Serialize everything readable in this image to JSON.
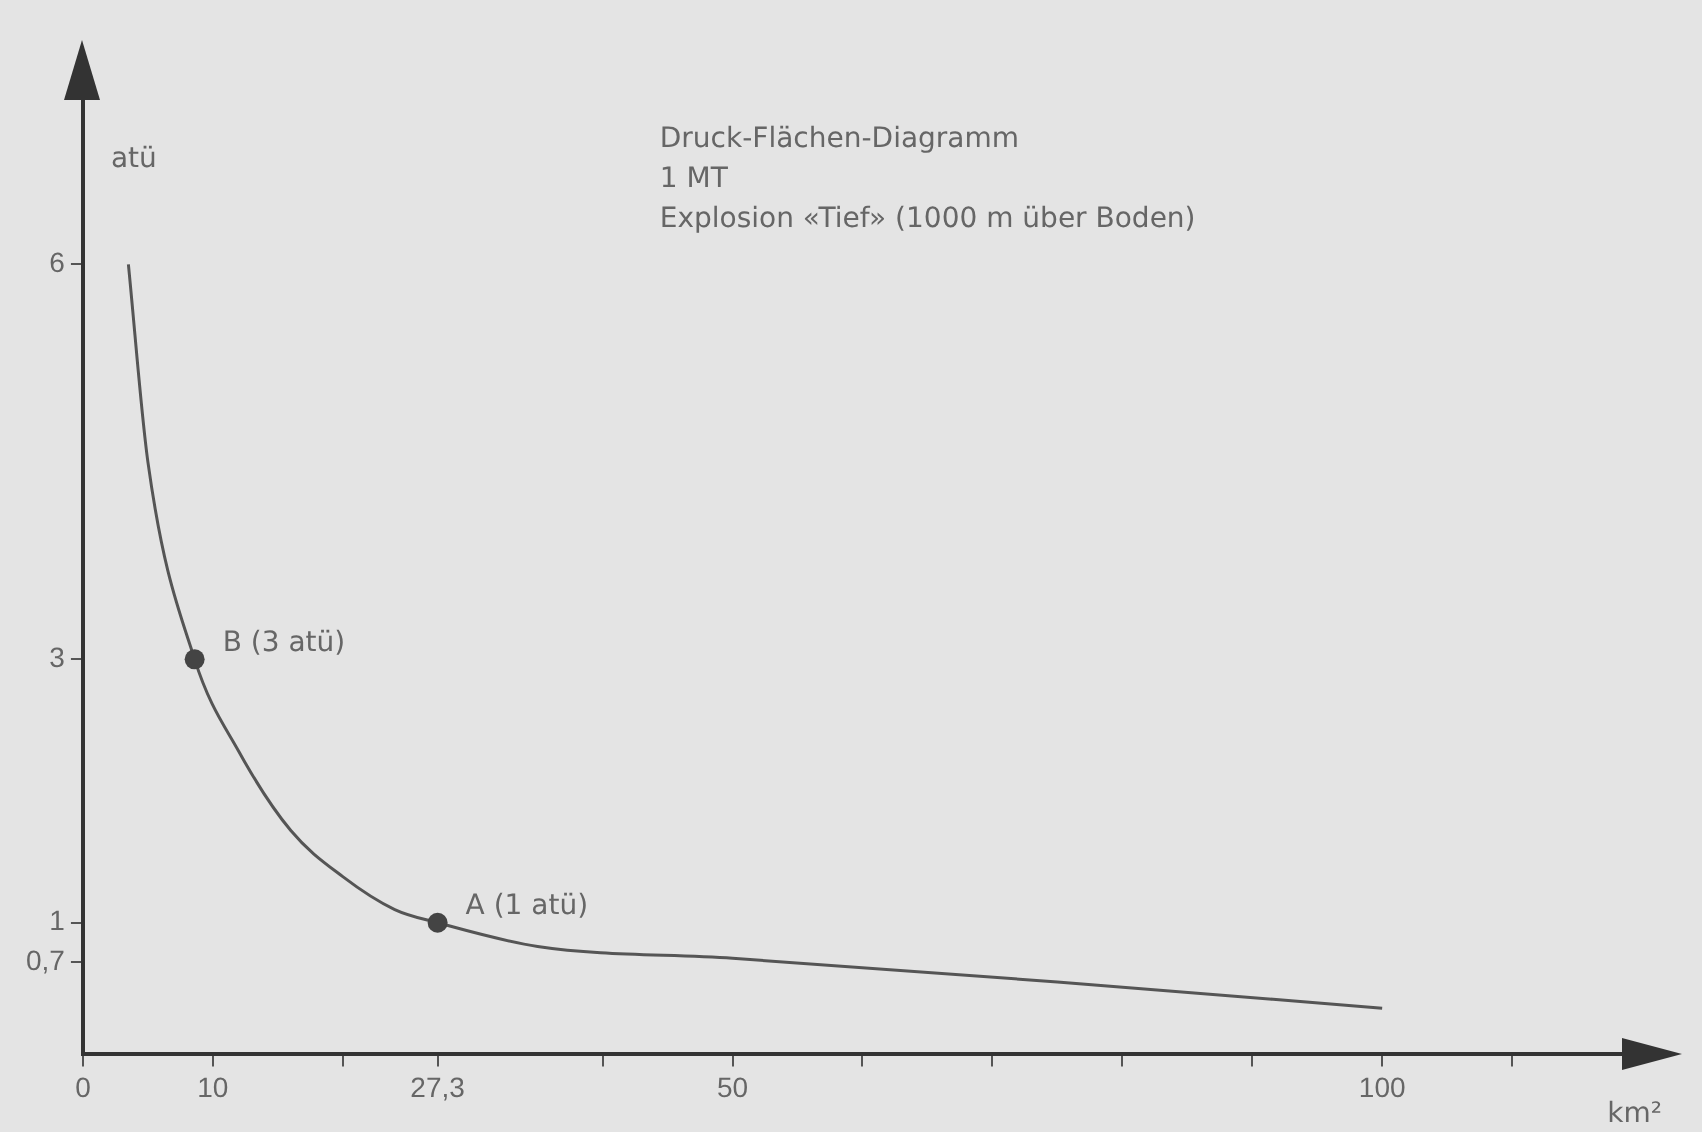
{
  "chart_data": {
    "type": "line",
    "title": "Druck-Flächen-Diagramm",
    "subtitle": "1 MT",
    "xlabel": "km²",
    "ylabel": "atü",
    "annotations": [
      "Explosion «Tief» (1000 m über Boden)",
      {
        "text": "B (3 atü)",
        "x": 8.6,
        "y": 3
      },
      {
        "text": "A (1 atü)",
        "x": 27.3,
        "y": 1
      }
    ],
    "x": [
      3.5,
      5,
      8.6,
      12,
      16,
      20,
      24,
      27.3,
      35,
      50,
      75,
      100
    ],
    "series": [
      {
        "color": "#555555",
        "values": [
          6,
          4.5,
          3,
          2.3,
          1.7,
          1.35,
          1.1,
          1,
          0.82,
          0.73,
          0.55,
          0.35
        ]
      }
    ],
    "xlim": [
      0,
      120
    ],
    "ylim": [
      0,
      7.4
    ],
    "xticks": [
      0,
      10,
      {
        "value": 20,
        "label": null
      },
      {
        "value": 27.3,
        "label": "27,3"
      },
      {
        "value": 40,
        "label": null
      },
      50,
      {
        "value": 60,
        "label": null
      },
      {
        "value": 70,
        "label": null
      },
      {
        "value": 80,
        "label": null
      },
      {
        "value": 90,
        "label": null
      },
      100,
      {
        "value": 110,
        "label": null
      }
    ],
    "yticks": [
      {
        "value": 0.7,
        "label": "0,7"
      },
      1,
      3,
      6
    ],
    "grid": false,
    "legend": false,
    "marker": "none",
    "line_style": "solid"
  }
}
